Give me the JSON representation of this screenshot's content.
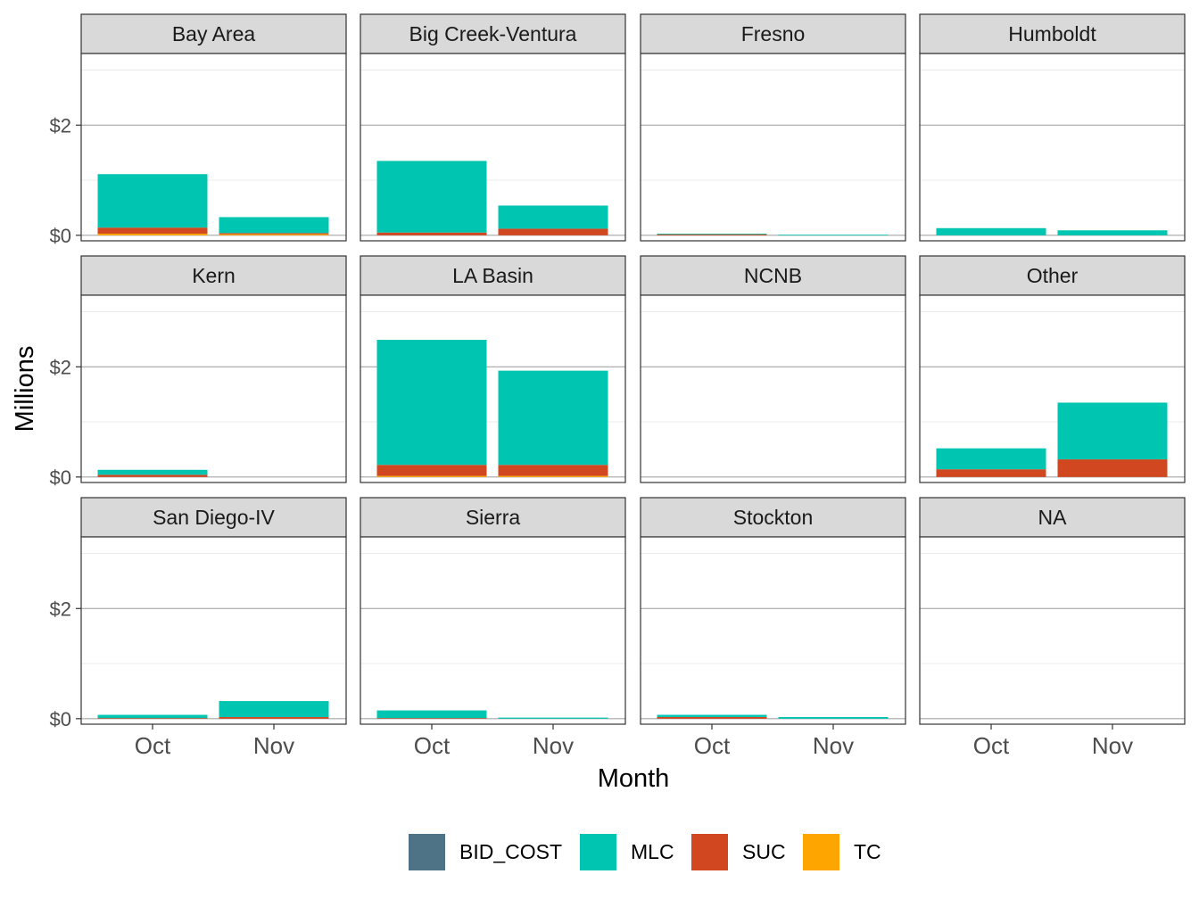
{
  "chart_data": {
    "type": "bar",
    "stacked": true,
    "faceted": true,
    "facet_columns": 4,
    "xlabel": "Month",
    "ylabel": "Millions",
    "categories": [
      "Oct",
      "Nov"
    ],
    "ylim": [
      -0.1,
      3.3
    ],
    "y_ticks": [
      0,
      2
    ],
    "y_tick_labels": [
      "$0",
      "$2"
    ],
    "grid": true,
    "legend_position": "bottom",
    "series_order": [
      "BID_COST",
      "MLC",
      "SUC",
      "TC"
    ],
    "colors": {
      "BID_COST": "#4e7386",
      "MLC": "#00c5b1",
      "SUC": "#d14720",
      "TC": "#ffa500"
    },
    "panels": [
      {
        "title": "Bay Area",
        "values": {
          "BID_COST": [
            0,
            0
          ],
          "MLC": [
            0.97,
            0.29
          ],
          "SUC": [
            0.11,
            0.02
          ],
          "TC": [
            0.03,
            0.02
          ]
        }
      },
      {
        "title": "Big Creek-Ventura",
        "values": {
          "BID_COST": [
            0,
            0
          ],
          "MLC": [
            1.3,
            0.42
          ],
          "SUC": [
            0.05,
            0.12
          ],
          "TC": [
            0,
            0
          ]
        }
      },
      {
        "title": "Fresno",
        "values": {
          "BID_COST": [
            0,
            0
          ],
          "MLC": [
            0.01,
            0.01
          ],
          "SUC": [
            0.02,
            0
          ],
          "TC": [
            0,
            0
          ]
        }
      },
      {
        "title": "Humboldt",
        "values": {
          "BID_COST": [
            0,
            0
          ],
          "MLC": [
            0.13,
            0.09
          ],
          "SUC": [
            0,
            0
          ],
          "TC": [
            0,
            0
          ]
        }
      },
      {
        "title": "Kern",
        "values": {
          "BID_COST": [
            0,
            0
          ],
          "MLC": [
            0.09,
            0
          ],
          "SUC": [
            0.04,
            0
          ],
          "TC": [
            0,
            0
          ]
        }
      },
      {
        "title": "LA Basin",
        "values": {
          "BID_COST": [
            0,
            0
          ],
          "MLC": [
            2.27,
            1.71
          ],
          "SUC": [
            0.2,
            0.2
          ],
          "TC": [
            0.02,
            0.02
          ]
        }
      },
      {
        "title": "NCNB",
        "values": {
          "BID_COST": [
            0,
            0
          ],
          "MLC": [
            0,
            0
          ],
          "SUC": [
            0,
            0
          ],
          "TC": [
            0,
            0
          ]
        }
      },
      {
        "title": "Other",
        "values": {
          "BID_COST": [
            0,
            0
          ],
          "MLC": [
            0.38,
            1.03
          ],
          "SUC": [
            0.14,
            0.32
          ],
          "TC": [
            0,
            0
          ]
        }
      },
      {
        "title": "San Diego-IV",
        "values": {
          "BID_COST": [
            0,
            0
          ],
          "MLC": [
            0.06,
            0.29
          ],
          "SUC": [
            0.01,
            0.03
          ],
          "TC": [
            0,
            0
          ]
        }
      },
      {
        "title": "Sierra",
        "values": {
          "BID_COST": [
            0,
            0
          ],
          "MLC": [
            0.14,
            0.02
          ],
          "SUC": [
            0.01,
            0
          ],
          "TC": [
            0,
            0
          ]
        }
      },
      {
        "title": "Stockton",
        "values": {
          "BID_COST": [
            0,
            0
          ],
          "MLC": [
            0.04,
            0.03
          ],
          "SUC": [
            0.03,
            0
          ],
          "TC": [
            0,
            0
          ]
        }
      },
      {
        "title": "NA",
        "values": {
          "BID_COST": [
            0,
            0
          ],
          "MLC": [
            0,
            0
          ],
          "SUC": [
            0,
            0
          ],
          "TC": [
            0,
            0
          ]
        }
      }
    ]
  }
}
